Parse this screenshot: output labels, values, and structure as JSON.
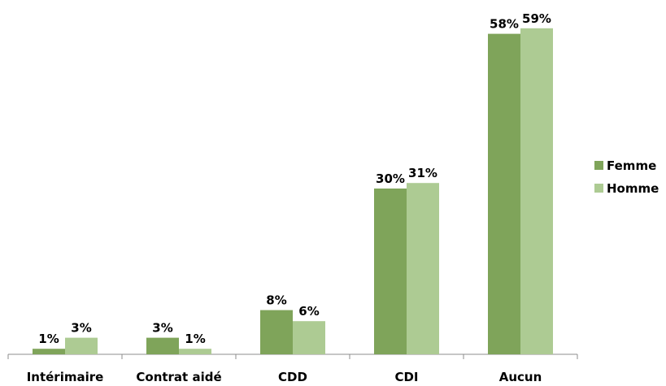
{
  "chart_data": {
    "type": "bar",
    "title": "",
    "xlabel": "",
    "ylabel": "",
    "categories": [
      "Intérimaire",
      "Contrat aidé",
      "CDD",
      "CDI",
      "Aucun"
    ],
    "series": [
      {
        "name": "Femme",
        "values": [
          1,
          3,
          8,
          30,
          58
        ],
        "labels": [
          "1%",
          "3%",
          "8%",
          "30%",
          "58%"
        ],
        "color": "#7fa45a"
      },
      {
        "name": "Homme",
        "values": [
          3,
          1,
          6,
          31,
          59
        ],
        "labels": [
          "3%",
          "1%",
          "6%",
          "31%",
          "59%"
        ],
        "color": "#adcb93"
      }
    ],
    "ylim": [
      0,
      61
    ],
    "grid": false,
    "legend": "right"
  }
}
